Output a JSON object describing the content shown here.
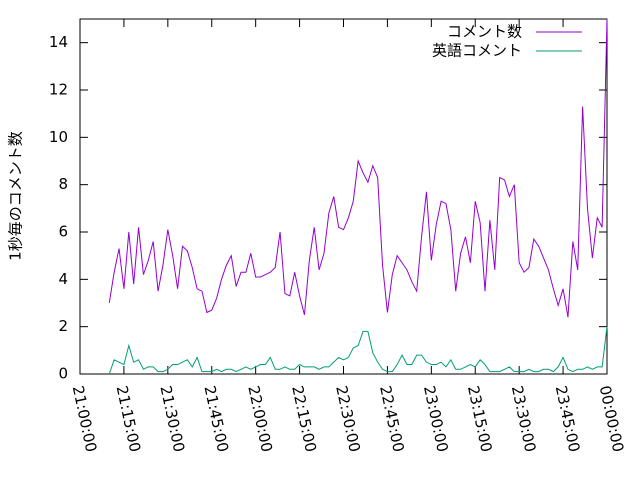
{
  "chart_data": {
    "type": "line",
    "ylabel": "1秒毎のコメント数",
    "x": [
      "21:10:00",
      "21:11:40",
      "21:13:20",
      "21:15:00",
      "21:16:40",
      "21:18:20",
      "21:20:00",
      "21:21:40",
      "21:23:20",
      "21:25:00",
      "21:26:40",
      "21:28:20",
      "21:30:00",
      "21:31:40",
      "21:33:20",
      "21:35:00",
      "21:36:40",
      "21:38:20",
      "21:40:00",
      "21:41:40",
      "21:43:20",
      "21:45:00",
      "21:46:40",
      "21:48:20",
      "21:50:00",
      "21:51:40",
      "21:53:20",
      "21:55:00",
      "21:56:40",
      "21:58:20",
      "22:00:00",
      "22:01:40",
      "22:03:20",
      "22:05:00",
      "22:06:40",
      "22:08:20",
      "22:10:00",
      "22:11:40",
      "22:13:20",
      "22:15:00",
      "22:16:40",
      "22:18:20",
      "22:20:00",
      "22:21:40",
      "22:23:20",
      "22:25:00",
      "22:26:40",
      "22:28:20",
      "22:30:00",
      "22:31:40",
      "22:33:20",
      "22:35:00",
      "22:36:40",
      "22:38:20",
      "22:40:00",
      "22:41:40",
      "22:43:20",
      "22:45:00",
      "22:46:40",
      "22:48:20",
      "22:50:00",
      "22:51:40",
      "22:53:20",
      "22:55:00",
      "22:56:40",
      "22:58:20",
      "23:00:00",
      "23:01:40",
      "23:03:20",
      "23:05:00",
      "23:06:40",
      "23:08:20",
      "23:10:00",
      "23:11:40",
      "23:13:20",
      "23:15:00",
      "23:16:40",
      "23:18:20",
      "23:20:00",
      "23:21:40",
      "23:23:20",
      "23:25:00",
      "23:26:40",
      "23:28:20",
      "23:30:00",
      "23:31:40",
      "23:33:20",
      "23:35:00",
      "23:36:40",
      "23:38:20",
      "23:40:00",
      "23:41:40",
      "23:43:20",
      "23:45:00",
      "23:46:40",
      "23:48:20",
      "23:50:00",
      "23:51:40",
      "23:53:20",
      "23:55:00",
      "23:56:40",
      "23:58:20",
      "00:00:00"
    ],
    "series": [
      {
        "name": "コメント数",
        "color": "#9400d3",
        "values": [
          3.0,
          4.3,
          5.3,
          3.6,
          6.0,
          3.8,
          6.2,
          4.2,
          4.8,
          5.6,
          3.5,
          4.6,
          6.1,
          5.0,
          3.6,
          5.4,
          5.2,
          4.5,
          3.6,
          3.5,
          2.6,
          2.7,
          3.2,
          4.0,
          4.6,
          5.0,
          3.7,
          4.3,
          4.3,
          5.1,
          4.1,
          4.1,
          4.2,
          4.3,
          4.5,
          6.0,
          3.4,
          3.3,
          4.3,
          3.3,
          2.5,
          4.8,
          6.2,
          4.4,
          5.1,
          6.8,
          7.5,
          6.2,
          6.1,
          6.6,
          7.3,
          9.0,
          8.5,
          8.1,
          8.8,
          8.3,
          4.6,
          2.6,
          4.2,
          5.0,
          4.7,
          4.4,
          3.9,
          3.5,
          5.8,
          7.7,
          4.8,
          6.3,
          7.3,
          7.2,
          6.1,
          3.5,
          5.1,
          5.8,
          4.7,
          7.3,
          6.4,
          3.5,
          6.5,
          4.4,
          8.3,
          8.2,
          7.5,
          8.0,
          4.7,
          4.3,
          4.5,
          5.7,
          5.4,
          4.9,
          4.4,
          3.6,
          2.9,
          3.6,
          2.4,
          5.6,
          4.4,
          11.3,
          7.0,
          4.9,
          6.6,
          6.2,
          15.0
        ]
      },
      {
        "name": "英語コメント",
        "color": "#009e73",
        "values": [
          0.0,
          0.6,
          0.5,
          0.4,
          1.2,
          0.5,
          0.6,
          0.2,
          0.3,
          0.3,
          0.1,
          0.1,
          0.2,
          0.4,
          0.4,
          0.5,
          0.6,
          0.3,
          0.7,
          0.1,
          0.1,
          0.1,
          0.2,
          0.1,
          0.2,
          0.2,
          0.1,
          0.2,
          0.3,
          0.2,
          0.3,
          0.4,
          0.4,
          0.7,
          0.2,
          0.2,
          0.3,
          0.2,
          0.2,
          0.4,
          0.3,
          0.3,
          0.3,
          0.2,
          0.3,
          0.3,
          0.5,
          0.7,
          0.6,
          0.7,
          1.1,
          1.2,
          1.8,
          1.8,
          0.9,
          0.5,
          0.2,
          0.1,
          0.1,
          0.4,
          0.8,
          0.4,
          0.4,
          0.8,
          0.8,
          0.5,
          0.4,
          0.4,
          0.5,
          0.3,
          0.6,
          0.2,
          0.2,
          0.3,
          0.4,
          0.3,
          0.6,
          0.4,
          0.1,
          0.1,
          0.1,
          0.2,
          0.3,
          0.1,
          0.1,
          0.1,
          0.2,
          0.1,
          0.1,
          0.2,
          0.2,
          0.1,
          0.3,
          0.7,
          0.2,
          0.1,
          0.2,
          0.2,
          0.3,
          0.2,
          0.3,
          0.3,
          2.0
        ]
      }
    ],
    "xlim": [
      "21:00:00",
      "00:00:00"
    ],
    "xticks": [
      "21:00:00",
      "21:15:00",
      "21:30:00",
      "21:45:00",
      "22:00:00",
      "22:15:00",
      "22:30:00",
      "22:45:00",
      "23:00:00",
      "23:15:00",
      "23:30:00",
      "23:45:00",
      "00:00:00"
    ],
    "ylim": [
      0,
      15
    ],
    "yticks": [
      0,
      2,
      4,
      6,
      8,
      10,
      12,
      14
    ],
    "legend": "top-right"
  }
}
